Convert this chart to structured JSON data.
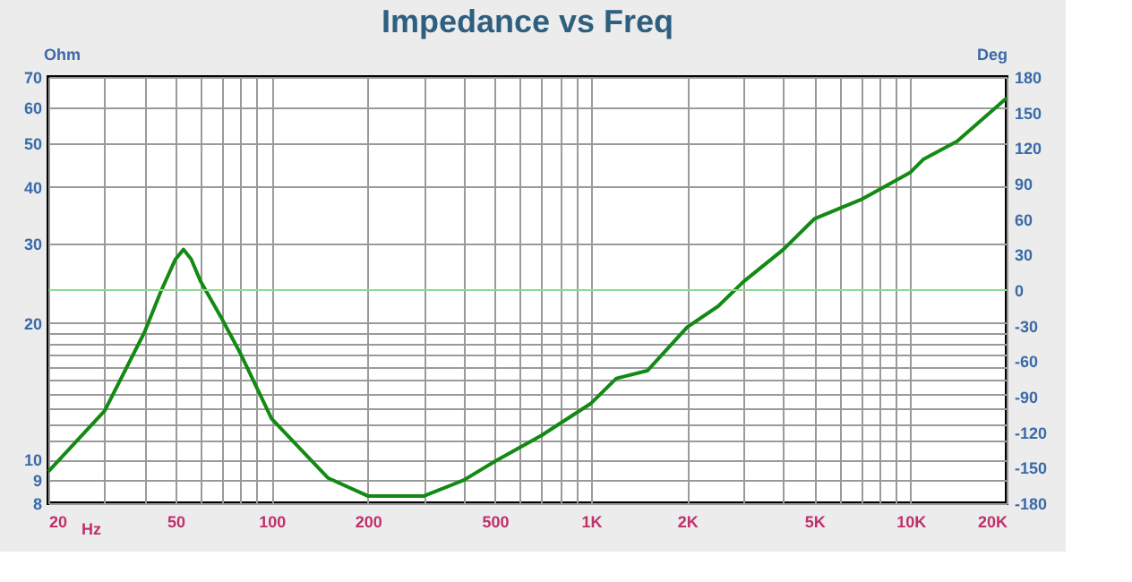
{
  "chart_data": {
    "type": "line",
    "title": "Impedance vs Freq",
    "xlabel": "Hz",
    "ylabel": "Ohm",
    "y2label": "Deg",
    "log": "xy",
    "grid": true,
    "marker": "none",
    "line_style": "solid",
    "xlim": [
      20,
      20000
    ],
    "ylim": [
      8,
      70
    ],
    "y2lim": [
      -180,
      180
    ],
    "xticks": [
      20,
      {
        "value": 30,
        "label": null
      },
      {
        "value": 40,
        "label": null
      },
      50,
      {
        "value": 60,
        "label": null
      },
      {
        "value": 70,
        "label": null
      },
      {
        "value": 80,
        "label": null
      },
      {
        "value": 90,
        "label": null
      },
      100,
      200,
      {
        "value": 300,
        "label": null
      },
      {
        "value": 400,
        "label": null
      },
      500,
      {
        "value": 600,
        "label": null
      },
      {
        "value": 700,
        "label": null
      },
      {
        "value": 800,
        "label": null
      },
      {
        "value": 900,
        "label": null
      },
      {
        "value": 1000,
        "label": "1K"
      },
      {
        "value": 2000,
        "label": "2K"
      },
      {
        "value": 3000,
        "label": null
      },
      {
        "value": 4000,
        "label": null
      },
      {
        "value": 5000,
        "label": "5K"
      },
      {
        "value": 6000,
        "label": null
      },
      {
        "value": 7000,
        "label": null
      },
      {
        "value": 8000,
        "label": null
      },
      {
        "value": 9000,
        "label": null
      },
      {
        "value": 10000,
        "label": "10K"
      },
      {
        "value": 20000,
        "label": "20K"
      }
    ],
    "yticks": [
      8,
      9,
      10,
      {
        "value": 11,
        "label": null
      },
      {
        "value": 12,
        "label": null
      },
      {
        "value": 13,
        "label": null
      },
      {
        "value": 14,
        "label": null
      },
      {
        "value": 15,
        "label": null
      },
      {
        "value": 16,
        "label": null
      },
      {
        "value": 17,
        "label": null
      },
      {
        "value": 18,
        "label": null
      },
      {
        "value": 19,
        "label": null
      },
      20,
      30,
      40,
      50,
      60,
      70
    ],
    "y2ticks": [
      -180,
      -150,
      -120,
      -90,
      -60,
      -30,
      0,
      30,
      60,
      90,
      120,
      150,
      180
    ],
    "ref_lines": [
      {
        "axis": "y2",
        "value": 0,
        "color": "#90d890",
        "line_style": "solid"
      }
    ],
    "series": [
      {
        "color": "#138a13",
        "x": [
          20,
          30,
          40,
          45,
          50,
          53,
          56,
          60,
          70,
          80,
          100,
          150,
          200,
          300,
          400,
          500,
          700,
          1000,
          1200,
          1500,
          2000,
          2500,
          3000,
          4000,
          5000,
          7000,
          10000,
          11000,
          14000,
          20000
        ],
        "values": [
          9.4,
          12.8,
          19.1,
          23.5,
          27.7,
          29.1,
          27.7,
          24.7,
          20.4,
          17.1,
          12.3,
          9.1,
          8.3,
          8.3,
          9.0,
          9.9,
          11.3,
          13.3,
          15.1,
          15.7,
          19.6,
          21.8,
          24.7,
          29.1,
          34.0,
          37.5,
          43.1,
          46.1,
          50.5,
          62.9
        ]
      }
    ]
  }
}
